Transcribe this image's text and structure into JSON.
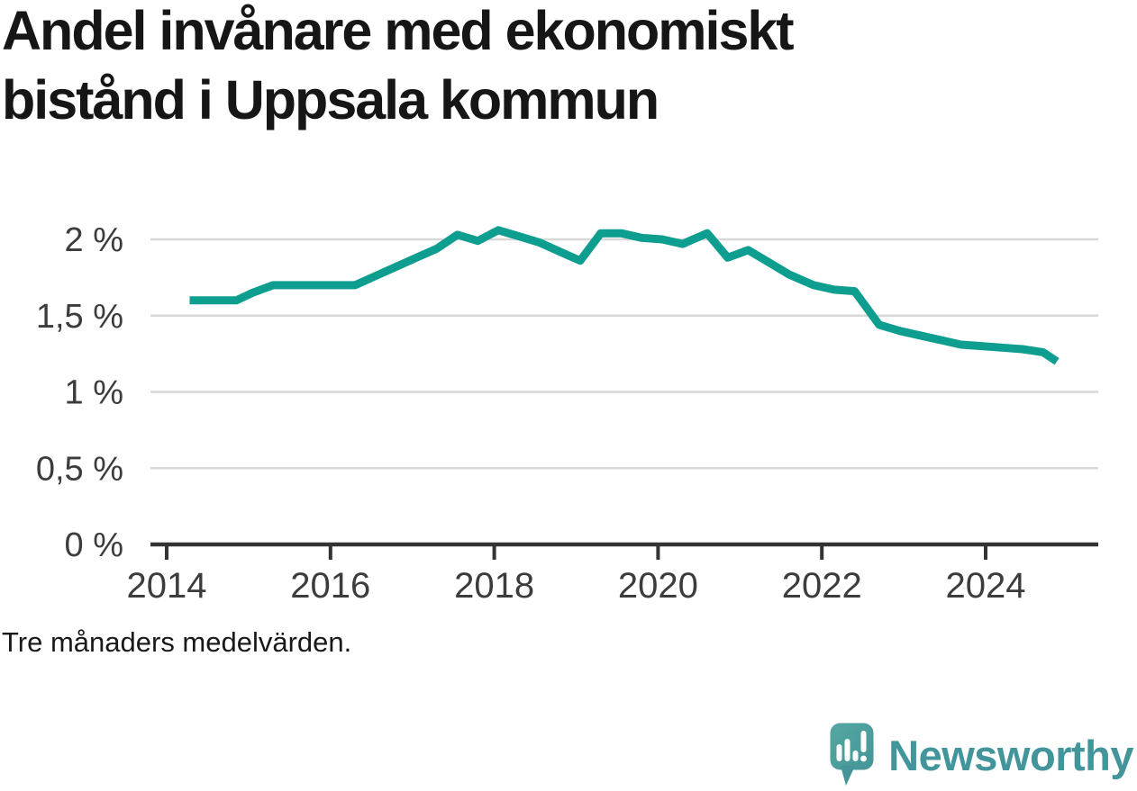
{
  "title": "Andel invånare med ekonomiskt bistånd i Uppsala kommun",
  "footnote": "Tre månaders medelvärden.",
  "logo": {
    "text": "Newsworthy",
    "icon": "newsworthy-speech-bubble-bar-chart-icon"
  },
  "colors": {
    "line": "#0d9e90",
    "grid": "#d8d8d8",
    "axis": "#333333",
    "tick_label": "#3c3c3c",
    "title": "#161616",
    "logo_teal": "#42959b",
    "logo_mark_light": "#54a8a2",
    "logo_mark_dark": "#459497"
  },
  "chart_data": {
    "type": "line",
    "title": "Andel invånare med ekonomiskt bistånd i Uppsala kommun",
    "subtitle": "Tre månaders medelvärden.",
    "unit": "%",
    "xlabel": "",
    "ylabel": "",
    "xlim": [
      2013.8,
      2025.4
    ],
    "ylim": [
      0,
      2.2
    ],
    "grid": true,
    "legend": false,
    "decimal_separator": ",",
    "yticks": [
      {
        "value": 0,
        "label": "0 %"
      },
      {
        "value": 0.5,
        "label": "0,5 %"
      },
      {
        "value": 1,
        "label": "1 %"
      },
      {
        "value": 1.5,
        "label": "1,5 %"
      },
      {
        "value": 2,
        "label": "2 %"
      }
    ],
    "xticks": [
      {
        "value": 2014,
        "label": "2014"
      },
      {
        "value": 2016,
        "label": "2016"
      },
      {
        "value": 2018,
        "label": "2018"
      },
      {
        "value": 2020,
        "label": "2020"
      },
      {
        "value": 2022,
        "label": "2022"
      },
      {
        "value": 2024,
        "label": "2024"
      }
    ],
    "series": [
      {
        "name": "Andel invånare med ekonomiskt bistånd",
        "points": [
          [
            2014.28,
            1.6
          ],
          [
            2014.55,
            1.6
          ],
          [
            2014.85,
            1.6
          ],
          [
            2015.05,
            1.65
          ],
          [
            2015.3,
            1.7
          ],
          [
            2015.55,
            1.7
          ],
          [
            2015.8,
            1.7
          ],
          [
            2016.05,
            1.7
          ],
          [
            2016.3,
            1.7
          ],
          [
            2016.55,
            1.76
          ],
          [
            2016.8,
            1.82
          ],
          [
            2017.05,
            1.88
          ],
          [
            2017.3,
            1.94
          ],
          [
            2017.55,
            2.03
          ],
          [
            2017.8,
            1.99
          ],
          [
            2018.05,
            2.06
          ],
          [
            2018.3,
            2.02
          ],
          [
            2018.55,
            1.98
          ],
          [
            2018.8,
            1.92
          ],
          [
            2019.05,
            1.86
          ],
          [
            2019.3,
            2.04
          ],
          [
            2019.55,
            2.04
          ],
          [
            2019.8,
            2.01
          ],
          [
            2020.05,
            2.0
          ],
          [
            2020.3,
            1.97
          ],
          [
            2020.6,
            2.04
          ],
          [
            2020.85,
            1.88
          ],
          [
            2021.1,
            1.93
          ],
          [
            2021.35,
            1.85
          ],
          [
            2021.6,
            1.77
          ],
          [
            2021.9,
            1.7
          ],
          [
            2022.15,
            1.67
          ],
          [
            2022.4,
            1.66
          ],
          [
            2022.7,
            1.44
          ],
          [
            2022.95,
            1.4
          ],
          [
            2023.2,
            1.37
          ],
          [
            2023.45,
            1.34
          ],
          [
            2023.7,
            1.31
          ],
          [
            2023.95,
            1.3
          ],
          [
            2024.2,
            1.29
          ],
          [
            2024.45,
            1.28
          ],
          [
            2024.7,
            1.26
          ],
          [
            2024.87,
            1.2
          ]
        ]
      }
    ]
  }
}
